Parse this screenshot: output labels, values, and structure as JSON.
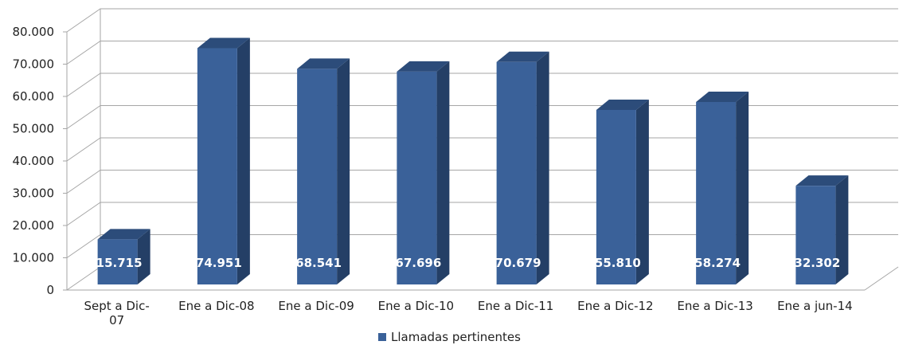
{
  "chart_data": {
    "type": "bar",
    "categories": [
      "Sept a Dic-07",
      "Ene a Dic-08",
      "Ene a Dic-09",
      "Ene a Dic-10",
      "Ene a Dic-11",
      "Ene a Dic-12",
      "Ene a Dic-13",
      "Ene a jun-14"
    ],
    "series": [
      {
        "name": "Llamadas pertinentes",
        "values": [
          15715,
          74951,
          68541,
          67696,
          70679,
          55810,
          58274,
          32302
        ]
      }
    ],
    "data_labels": [
      "15.715",
      "74.951",
      "68.541",
      "67.696",
      "70.679",
      "55.810",
      "58.274",
      "32.302"
    ],
    "y_ticks": [
      "0",
      "10.000",
      "20.000",
      "30.000",
      "40.000",
      "50.000",
      "60.000",
      "70.000",
      "80.000"
    ],
    "ylim": [
      0,
      80000
    ],
    "grid": true,
    "legend_position": "bottom",
    "colors": {
      "front": "#3A6199",
      "side": "#243F66",
      "top": "#2C4C7A",
      "grid": "#A6A6A6"
    }
  }
}
